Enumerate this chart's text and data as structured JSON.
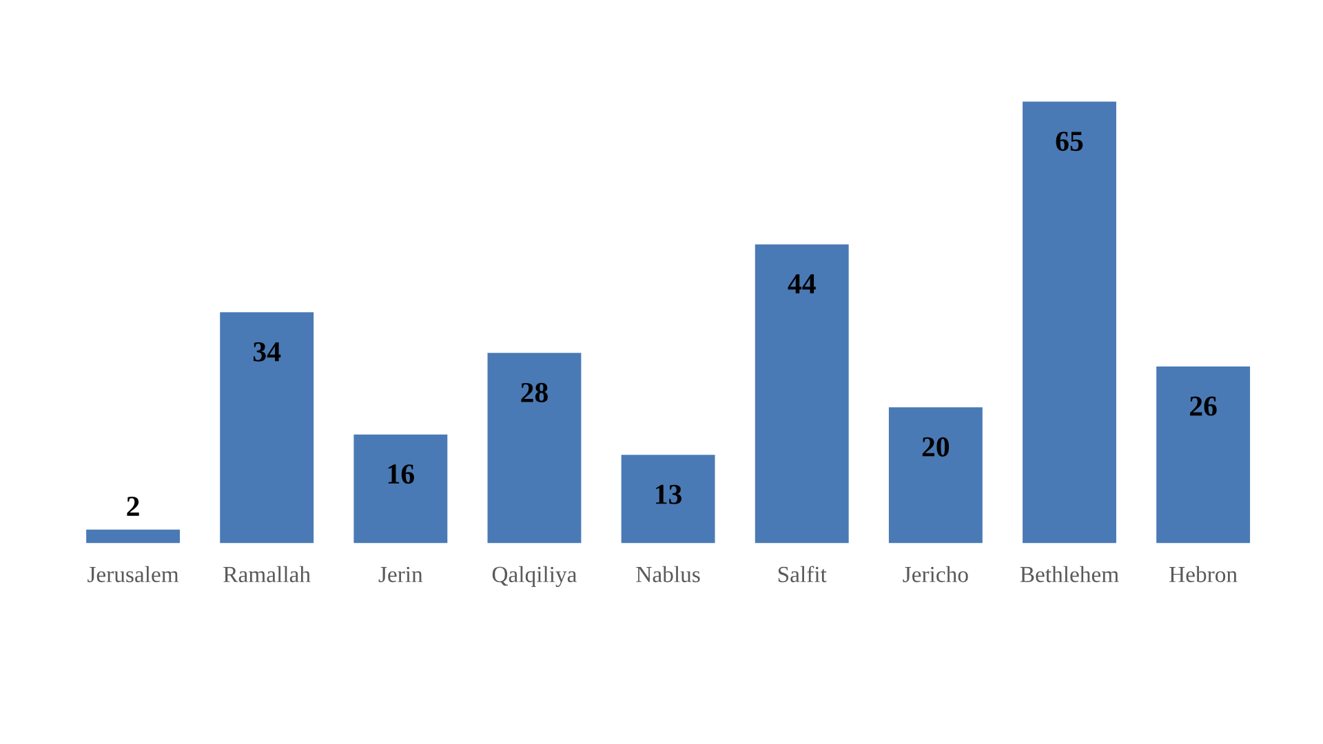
{
  "chart_data": {
    "type": "bar",
    "categories": [
      "Jerusalem",
      "Ramallah",
      "Jerin",
      "Qalqiliya",
      "Nablus",
      "Salfit",
      "Jericho",
      "Bethlehem",
      "Hebron"
    ],
    "values": [
      2,
      34,
      16,
      28,
      13,
      44,
      20,
      65,
      26
    ],
    "color": "#4a7ab5",
    "data_labels": true,
    "grid": false,
    "legend": false
  }
}
